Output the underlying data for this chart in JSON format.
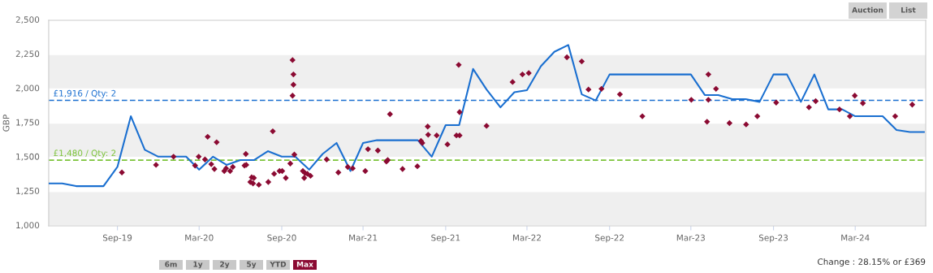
{
  "chart_data": {
    "type": "line",
    "ylabel": "GBP",
    "xlim": [
      "2019-04-01",
      "2024-08-05"
    ],
    "xticks": [
      {
        "value": "2019-09-01",
        "label": "Sep-19"
      },
      {
        "value": "2020-03-01",
        "label": "Mar-20"
      },
      {
        "value": "2020-09-01",
        "label": "Sep-20"
      },
      {
        "value": "2021-03-01",
        "label": "Mar-21"
      },
      {
        "value": "2021-09-01",
        "label": "Sep-21"
      },
      {
        "value": "2022-03-01",
        "label": "Mar-22"
      },
      {
        "value": "2022-09-01",
        "label": "Sep-22"
      },
      {
        "value": "2023-03-01",
        "label": "Mar-23"
      },
      {
        "value": "2023-09-01",
        "label": "Sep-23"
      },
      {
        "value": "2024-03-01",
        "label": "Mar-24"
      }
    ],
    "ylim": [
      1000,
      2500
    ],
    "yticks": [
      {
        "value": 1000,
        "label": "1,000"
      },
      {
        "value": 1250,
        "label": "1,250"
      },
      {
        "value": 1500,
        "label": "1,500"
      },
      {
        "value": 1750,
        "label": "1,750"
      },
      {
        "value": 2000,
        "label": "2,000"
      },
      {
        "value": 2250,
        "label": "2,250"
      },
      {
        "value": 2500,
        "label": "2,500"
      }
    ],
    "grid": "y",
    "series": [
      {
        "color": "#1a6fd0",
        "marker": "none",
        "line_style": "solid",
        "x": [
          "2019-04-01",
          "2019-05-01",
          "2019-06-01",
          "2019-08-01",
          "2019-09-01",
          "2019-10-01",
          "2019-11-01",
          "2019-12-01",
          "2020-02-01",
          "2020-03-01",
          "2020-04-01",
          "2020-05-01",
          "2020-06-01",
          "2020-07-01",
          "2020-08-01",
          "2020-09-01",
          "2020-10-01",
          "2020-11-01",
          "2020-12-01",
          "2021-01-01",
          "2021-02-01",
          "2021-03-01",
          "2021-04-01",
          "2021-07-01",
          "2021-08-01",
          "2021-09-01",
          "2021-10-01",
          "2021-11-01",
          "2021-12-01",
          "2022-01-01",
          "2022-02-01",
          "2022-03-01",
          "2022-04-01",
          "2022-05-01",
          "2022-06-01",
          "2022-07-01",
          "2022-08-01",
          "2022-09-01",
          "2023-03-01",
          "2023-04-01",
          "2023-05-01",
          "2023-06-01",
          "2023-07-01",
          "2023-08-01",
          "2023-09-01",
          "2023-10-01",
          "2023-11-01",
          "2023-12-01",
          "2024-01-01",
          "2024-02-01",
          "2024-03-01",
          "2024-05-01",
          "2024-06-01",
          "2024-07-01",
          "2024-08-01"
        ],
        "values": [
          1310,
          1310,
          1290,
          1290,
          1430,
          1800,
          1555,
          1505,
          1505,
          1410,
          1505,
          1445,
          1480,
          1480,
          1545,
          1505,
          1505,
          1410,
          1525,
          1605,
          1400,
          1605,
          1625,
          1625,
          1505,
          1735,
          1735,
          2145,
          1995,
          1865,
          1975,
          1990,
          2165,
          2270,
          2320,
          1960,
          1915,
          2105,
          2105,
          1955,
          1955,
          1925,
          1925,
          1905,
          2105,
          2105,
          1905,
          2105,
          1850,
          1850,
          1800,
          1800,
          1700,
          1685,
          1685
        ]
      },
      {
        "type": "scatter",
        "color": "#8b0a32",
        "marker": "diamond",
        "x": [
          "2019-09-11",
          "2019-11-26",
          "2020-01-04",
          "2020-02-21",
          "2020-02-29",
          "2020-03-14",
          "2020-03-20",
          "2020-03-28",
          "2020-04-04",
          "2020-04-09",
          "2020-04-26",
          "2020-04-30",
          "2020-05-09",
          "2020-05-15",
          "2020-06-10",
          "2020-06-13",
          "2020-06-14",
          "2020-06-23",
          "2020-06-26",
          "2020-06-29",
          "2020-07-01",
          "2020-07-12",
          "2020-08-02",
          "2020-08-12",
          "2020-08-15",
          "2020-08-27",
          "2020-09-02",
          "2020-09-10",
          "2020-09-20",
          "2020-09-25",
          "2020-09-27",
          "2020-09-27",
          "2020-09-25",
          "2020-09-29",
          "2020-10-18",
          "2020-10-21",
          "2020-10-23",
          "2020-10-28",
          "2020-11-04",
          "2020-12-10",
          "2021-01-05",
          "2021-01-26",
          "2021-02-06",
          "2021-03-06",
          "2021-03-12",
          "2021-04-03",
          "2021-04-22",
          "2021-04-25",
          "2021-04-30",
          "2021-05-28",
          "2021-06-30",
          "2021-07-08",
          "2021-07-11",
          "2021-07-23",
          "2021-07-24",
          "2021-08-12",
          "2021-09-05",
          "2021-09-25",
          "2021-10-02",
          "2021-10-02",
          "2021-09-30",
          "2021-12-01",
          "2022-01-28",
          "2022-02-19",
          "2022-03-05",
          "2022-05-29",
          "2022-07-01",
          "2022-07-16",
          "2022-08-14",
          "2022-09-24",
          "2022-11-13",
          "2023-03-02",
          "2023-04-09",
          "2023-04-09",
          "2023-04-06",
          "2023-04-26",
          "2023-05-26",
          "2023-07-02",
          "2023-07-27",
          "2023-09-07",
          "2023-11-19",
          "2023-12-04",
          "2024-01-26",
          "2024-02-18",
          "2024-02-29",
          "2024-03-18",
          "2024-05-29",
          "2024-07-06"
        ],
        "values": [
          1390,
          1445,
          1505,
          1440,
          1505,
          1485,
          1650,
          1450,
          1415,
          1610,
          1400,
          1420,
          1400,
          1430,
          1440,
          1525,
          1445,
          1320,
          1355,
          1310,
          1350,
          1300,
          1320,
          1690,
          1380,
          1400,
          1400,
          1350,
          1455,
          2210,
          2105,
          2030,
          1950,
          1520,
          1400,
          1350,
          1385,
          1380,
          1365,
          1485,
          1390,
          1430,
          1420,
          1400,
          1560,
          1550,
          1470,
          1480,
          1815,
          1415,
          1435,
          1620,
          1605,
          1725,
          1665,
          1660,
          1595,
          1660,
          1660,
          1830,
          2175,
          1730,
          2050,
          2105,
          2115,
          2230,
          2200,
          1995,
          2000,
          1960,
          1800,
          1920,
          2105,
          1920,
          1760,
          2000,
          1750,
          1740,
          1800,
          1900,
          1865,
          1910,
          1850,
          1800,
          1950,
          1895,
          1800,
          1885
        ]
      }
    ],
    "ref_lines": [
      {
        "axis": "y",
        "value": 1916,
        "label": "£1,916 / Qty: 2",
        "color": "#1a6fd0",
        "line_style": "dashed"
      },
      {
        "axis": "y",
        "value": 1480,
        "label": "£1,480 / Qty: 2",
        "color": "#7cc33a",
        "line_style": "dashed"
      }
    ],
    "annotations": [
      "Auction",
      "List",
      "6m",
      "1y",
      "2y",
      "5y",
      "YTD",
      "Max",
      "Change : 28.15% or £369"
    ]
  }
}
